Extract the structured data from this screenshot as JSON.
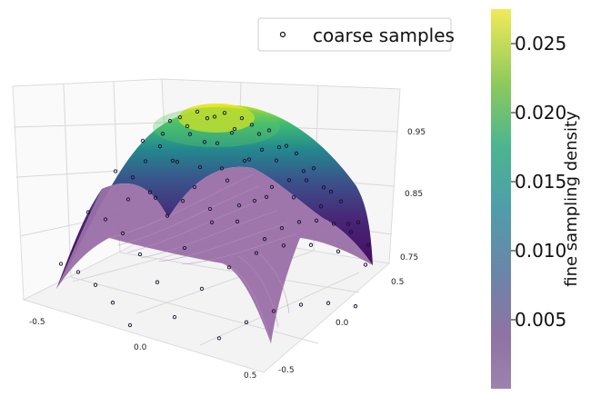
{
  "chart_data": {
    "type": "surface3d",
    "title": "",
    "surface": {
      "function": "z = (1 - x^2) * (1 - y^2)",
      "x_range": [
        -0.6,
        0.6
      ],
      "y_range": [
        -0.6,
        0.6
      ],
      "shape": "dome (saddle-free bump) with a lighter lower half and a darker upper half"
    },
    "x_ticks": [
      "-0.5",
      "0.0",
      "0.5"
    ],
    "y_ticks": [
      "-0.5",
      "0.0",
      "0.5"
    ],
    "z_ticks": [
      "0.75",
      "0.85",
      "0.95"
    ],
    "zlim": [
      0.72,
      1.0
    ],
    "legend": {
      "position": "top-center",
      "entries": [
        {
          "label": "coarse samples",
          "marker": "open-circle"
        }
      ]
    },
    "colorbar": {
      "label": "fine sampling density",
      "colormap": "viridis",
      "range": [
        0.0,
        0.0275
      ],
      "ticks": [
        "0.005",
        "0.010",
        "0.015",
        "0.020",
        "0.025"
      ],
      "tick_values": [
        0.005,
        0.01,
        0.015,
        0.02,
        0.025
      ]
    },
    "colors": {
      "front_surface": "#9a6fa6",
      "back_low": "#3b0f70",
      "back_peak": "#e8e419",
      "markers": "#1a0f2e"
    }
  }
}
